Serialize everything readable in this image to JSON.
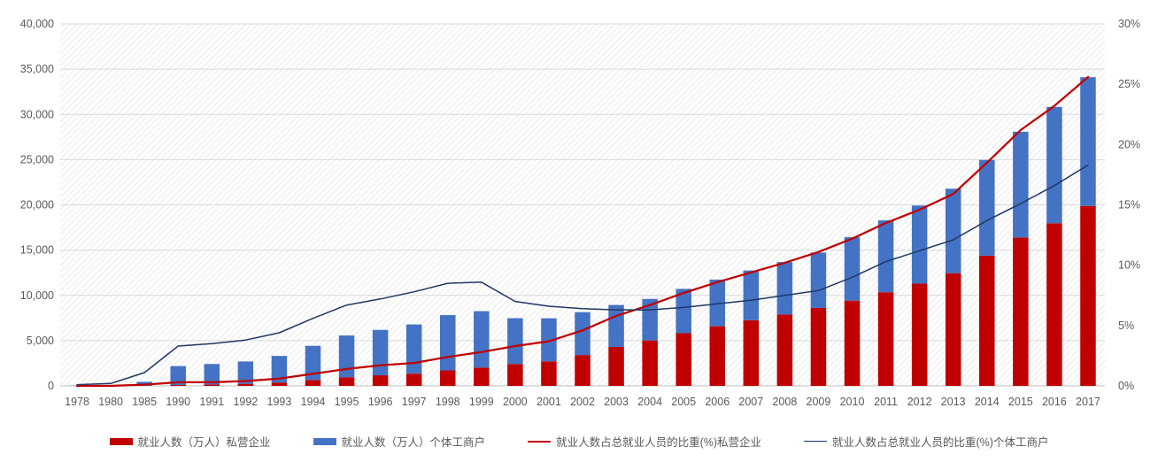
{
  "chart_data": {
    "type": "bar",
    "subtype": "stacked-bar-with-lines",
    "title": "",
    "xlabel": "",
    "ylabel_left": "",
    "ylabel_right": "",
    "grid": true,
    "legend_position": "bottom",
    "plot_background": "diagonal-hatch",
    "categories": [
      "1978",
      "1980",
      "1985",
      "1990",
      "1991",
      "1992",
      "1993",
      "1994",
      "1995",
      "1996",
      "1997",
      "1998",
      "1999",
      "2000",
      "2001",
      "2002",
      "2003",
      "2004",
      "2005",
      "2006",
      "2007",
      "2008",
      "2009",
      "2010",
      "2011",
      "2012",
      "2013",
      "2014",
      "2015",
      "2016",
      "2017"
    ],
    "left_axis": {
      "min": 0,
      "max": 40000,
      "tick_labels": [
        "0",
        "5,000",
        "10,000",
        "15,000",
        "20,000",
        "25,000",
        "30,000",
        "35,000",
        "40,000"
      ]
    },
    "right_axis": {
      "min": 0,
      "max": 30,
      "tick_labels": [
        "0%",
        "5%",
        "10%",
        "15%",
        "20%",
        "25%",
        "30%"
      ]
    },
    "series": [
      {
        "name": "就业人数（万人）私营企业",
        "type": "bar",
        "stack": "employment",
        "axis": "left",
        "color": "#C00000",
        "values": [
          0,
          0,
          0,
          100,
          160,
          230,
          370,
          650,
          960,
          1170,
          1350,
          1710,
          2020,
          2410,
          2710,
          3410,
          4300,
          5020,
          5820,
          6590,
          7250,
          7900,
          8610,
          9420,
          10350,
          11300,
          12450,
          14390,
          16390,
          17970,
          19880
        ]
      },
      {
        "name": "就业人数（万人）个体工商户",
        "type": "bar",
        "stack": "employment",
        "axis": "left",
        "color": "#4472C4",
        "values": [
          30,
          80,
          450,
          2090,
          2260,
          2470,
          2940,
          3780,
          4610,
          5020,
          5440,
          6110,
          6240,
          5070,
          4760,
          4740,
          4640,
          4590,
          4900,
          5160,
          5500,
          5780,
          6120,
          7010,
          7950,
          8630,
          9340,
          10580,
          11690,
          12860,
          14230
        ]
      },
      {
        "name": "就业人数占总就业人员的比重(%)私营企业",
        "type": "line",
        "axis": "right",
        "color": "#C00000",
        "stroke_width": 2.25,
        "values": [
          0,
          0,
          0.1,
          0.3,
          0.3,
          0.4,
          0.6,
          1.0,
          1.4,
          1.7,
          1.9,
          2.4,
          2.8,
          3.3,
          3.7,
          4.6,
          5.8,
          6.7,
          7.7,
          8.6,
          9.4,
          10.2,
          11.1,
          12.2,
          13.5,
          14.6,
          15.9,
          18.5,
          21.2,
          23.2,
          25.6
        ]
      },
      {
        "name": "就业人数占总就业人员的比重(%)个体工商户",
        "type": "line",
        "axis": "right",
        "color": "#1F3864",
        "stroke_width": 1.5,
        "values": [
          0.1,
          0.2,
          1.1,
          3.3,
          3.5,
          3.8,
          4.4,
          5.6,
          6.7,
          7.2,
          7.8,
          8.5,
          8.6,
          7.0,
          6.6,
          6.4,
          6.3,
          6.3,
          6.5,
          6.8,
          7.1,
          7.5,
          7.9,
          9.0,
          10.3,
          11.2,
          12.1,
          13.7,
          15.1,
          16.6,
          18.3
        ]
      }
    ]
  },
  "colors": {
    "grid": "#D9D9D9",
    "axis_line": "#BFBFBF",
    "axis_text": "#595959",
    "hatch": "#EAEAEA",
    "plot_fill": "#FFFFFF"
  }
}
